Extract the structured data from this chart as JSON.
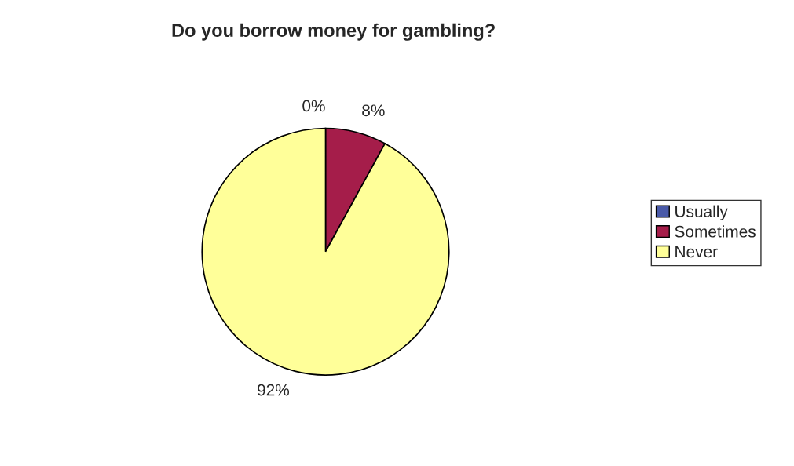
{
  "chart_data": {
    "type": "pie",
    "title": "Do you borrow money for gambling?",
    "categories": [
      "Usually",
      "Sometimes",
      "Never"
    ],
    "values": [
      0,
      8,
      92
    ],
    "colors": [
      "#4a5aa8",
      "#a51d4a",
      "#ffff99"
    ],
    "value_labels": [
      "0%",
      "8%",
      "92%"
    ],
    "legend": "right"
  }
}
